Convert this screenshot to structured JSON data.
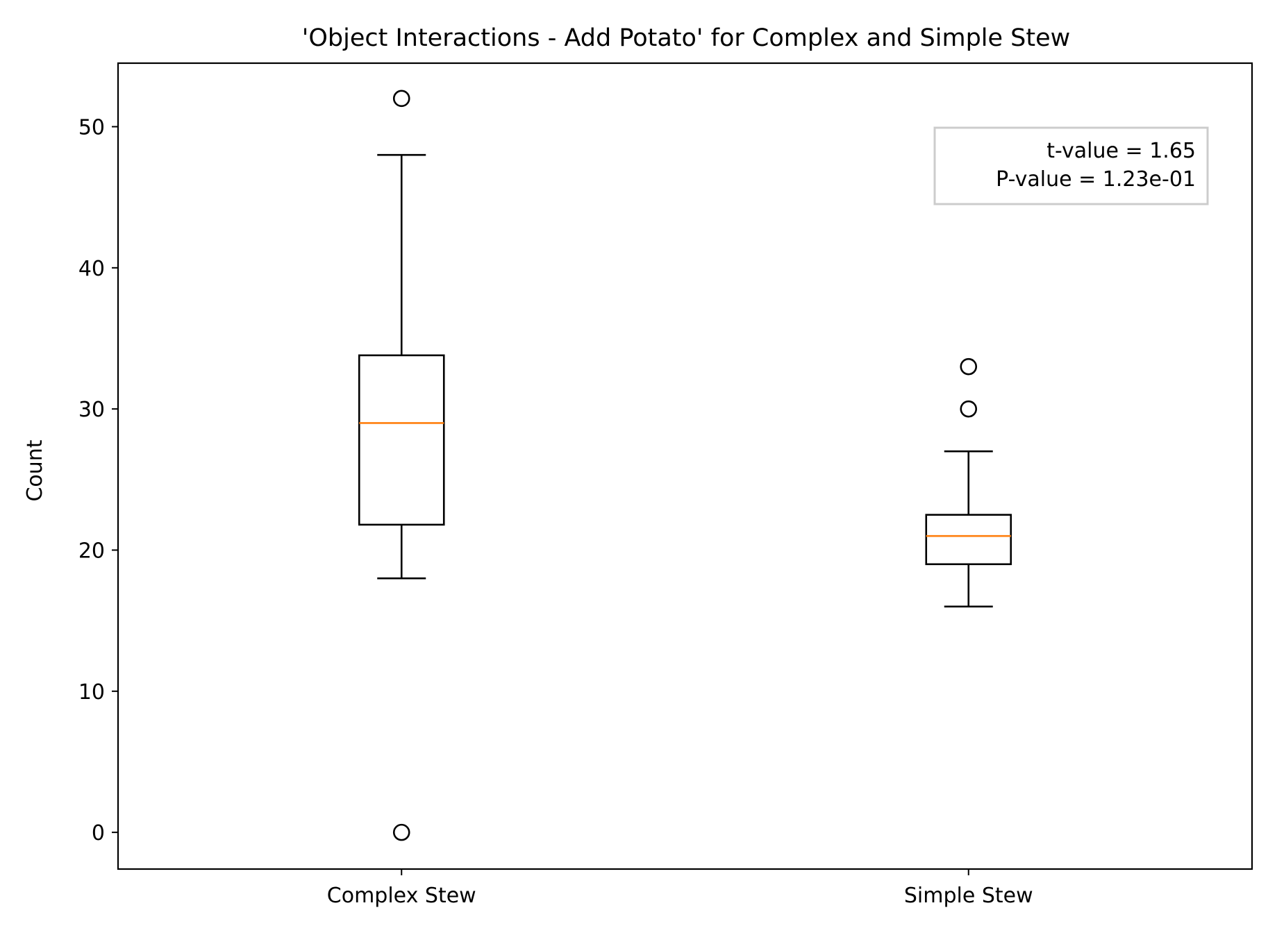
{
  "chart_data": {
    "type": "box",
    "title": "'Object Interactions - Add Potato' for Complex and Simple Stew",
    "xlabel": "",
    "ylabel": "Count",
    "ylim": [
      -2.6,
      54.5
    ],
    "yticks": [
      0,
      10,
      20,
      30,
      40,
      50
    ],
    "categories": [
      "Complex Stew",
      "Simple Stew"
    ],
    "boxes": [
      {
        "category": "Complex Stew",
        "whisker_low": 18,
        "q1": 21.8,
        "median": 29,
        "q3": 33.8,
        "whisker_high": 48,
        "outliers": [
          52,
          0
        ]
      },
      {
        "category": "Simple Stew",
        "whisker_low": 16,
        "q1": 19,
        "median": 21,
        "q3": 22.5,
        "whisker_high": 27,
        "outliers": [
          33,
          30
        ]
      }
    ],
    "annotation": {
      "lines": [
        "t-value = 1.65",
        "P-value = 1.23e-01"
      ],
      "placement": "top-right"
    },
    "grid": false,
    "colors": {
      "box": "#000000",
      "median": "#ff7f0e",
      "annotation_border": "#cccccc"
    }
  }
}
